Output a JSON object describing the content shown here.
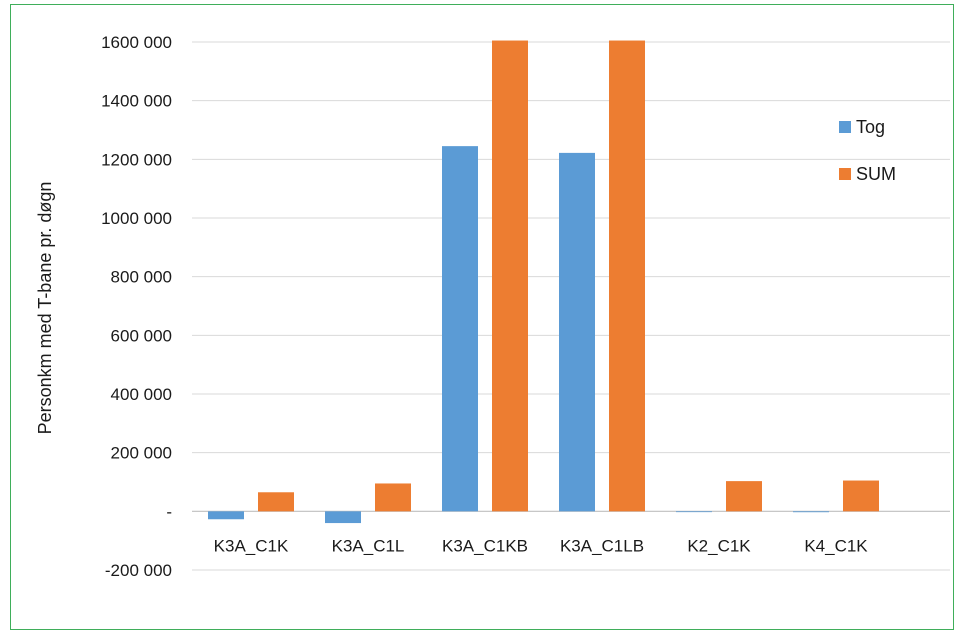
{
  "chart_data": {
    "type": "bar",
    "title": "",
    "xlabel": "",
    "ylabel": "Personkm med T-bane pr. døgn",
    "categories": [
      "K3A_C1K",
      "K3A_C1L",
      "K3A_C1KB",
      "K3A_C1LB",
      "K2_C1K",
      "K4_C1K"
    ],
    "series": [
      {
        "name": "Tog",
        "color": "#5b9bd5",
        "values": [
          -27000,
          -40000,
          1245000,
          1222000,
          -2000,
          -3000
        ]
      },
      {
        "name": "SUM",
        "color": "#ed7d31",
        "values": [
          65000,
          95000,
          1605000,
          1605000,
          103000,
          105000
        ]
      }
    ],
    "ylim": [
      -200000,
      1600000
    ],
    "yticks": [
      1600000,
      1400000,
      1200000,
      1000000,
      800000,
      600000,
      400000,
      200000,
      0,
      -200000
    ],
    "ytick_labels": [
      "1600 000",
      "1400 000",
      "1200 000",
      "1000 000",
      "800 000",
      "600 000",
      "400 000",
      "200 000",
      "-",
      "-200 000"
    ],
    "grid": true,
    "legend_position": "right"
  }
}
